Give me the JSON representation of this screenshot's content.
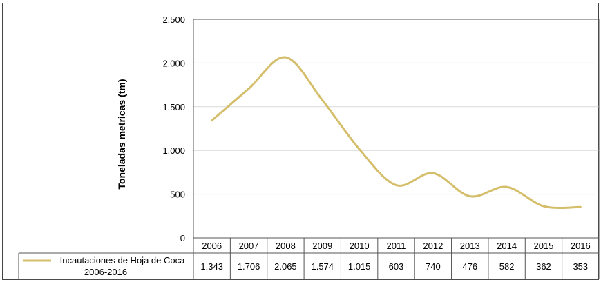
{
  "chart_data": {
    "type": "line",
    "title": "",
    "xlabel": "",
    "ylabel": "Toneladas metricas (tm)",
    "categories": [
      "2006",
      "2007",
      "2008",
      "2009",
      "2010",
      "2011",
      "2012",
      "2013",
      "2014",
      "2015",
      "2016"
    ],
    "series": [
      {
        "name": "Incautaciones de Hoja de Coca 2006-2016",
        "name_lines": [
          "Incautaciones de Hoja de Coca",
          "2006-2016"
        ],
        "values": [
          1343,
          1706,
          2065,
          1574,
          1015,
          603,
          740,
          476,
          582,
          362,
          353
        ],
        "value_labels": [
          "1.343",
          "1.706",
          "2.065",
          "1.574",
          "1.015",
          "603",
          "740",
          "476",
          "582",
          "362",
          "353"
        ],
        "color": "#D4BE6A"
      }
    ],
    "ylim": [
      0,
      2500
    ],
    "yticks": [
      0,
      500,
      1000,
      1500,
      2000,
      2500
    ],
    "ytick_labels": [
      "0",
      "500",
      "1.000",
      "1.500",
      "2.000",
      "2.500"
    ],
    "grid": true,
    "legend": "data-table"
  }
}
